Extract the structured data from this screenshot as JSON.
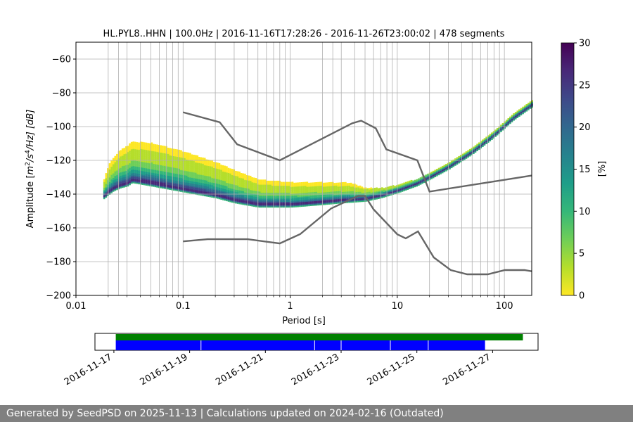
{
  "chart_data": [
    {
      "type": "heatmap",
      "title": "HL.PYL8..HHN | 100.0Hz | 2016-11-16T17:28:26 - 2016-11-26T23:00:02 | 478 segments",
      "xlabel": "Period [s]",
      "ylabel_parts": {
        "pre": "Amplitude [",
        "m": "m",
        "exp1": "2",
        "mid": "/s",
        "exp2": "4",
        "post": "/Hz] [dB]"
      },
      "xscale": "log",
      "xlim": [
        0.01,
        180
      ],
      "ylim": [
        -200,
        -50
      ],
      "xticks": [
        {
          "v": 0.01,
          "label": "0.01"
        },
        {
          "v": 0.1,
          "label": "0.1"
        },
        {
          "v": 1,
          "label": "1"
        },
        {
          "v": 10,
          "label": "10"
        },
        {
          "v": 100,
          "label": "100"
        }
      ],
      "yticks": [
        {
          "v": -60,
          "label": "−60"
        },
        {
          "v": -80,
          "label": "−80"
        },
        {
          "v": -100,
          "label": "−100"
        },
        {
          "v": -120,
          "label": "−120"
        },
        {
          "v": -140,
          "label": "−140"
        },
        {
          "v": -160,
          "label": "−160"
        },
        {
          "v": -180,
          "label": "−180"
        },
        {
          "v": -200,
          "label": "−200"
        }
      ],
      "grid_periods": [
        0.02,
        0.025,
        0.03,
        0.04,
        0.05,
        0.06,
        0.07,
        0.08,
        0.09,
        0.1,
        0.2,
        0.3,
        0.4,
        0.5,
        0.6,
        0.7,
        0.8,
        0.9,
        1.0,
        2.0,
        2.5,
        3.0,
        4.0,
        5.0,
        6.0,
        7.0,
        8.0,
        9.0,
        10.0,
        20.0,
        30.0,
        40.0,
        50.0,
        60.0,
        70.0,
        80.0,
        90.0,
        100.0
      ],
      "grid_db": [
        -60,
        -80,
        -100,
        -120,
        -140,
        -160,
        -180
      ],
      "noise_models": [
        {
          "name": "NHNM",
          "points": [
            [
              0.1,
              -91.5
            ],
            [
              0.22,
              -97.4
            ],
            [
              0.32,
              -110.5
            ],
            [
              0.8,
              -120
            ],
            [
              3.8,
              -98
            ],
            [
              4.6,
              -96.5
            ],
            [
              6.3,
              -101
            ],
            [
              7.9,
              -113.5
            ],
            [
              15.4,
              -120
            ],
            [
              20,
              -138.5
            ],
            [
              180,
              -129
            ]
          ]
        },
        {
          "name": "NLNM",
          "points": [
            [
              0.1,
              -168
            ],
            [
              0.17,
              -166.7
            ],
            [
              0.4,
              -166.7
            ],
            [
              0.8,
              -169.2
            ],
            [
              1.24,
              -163.7
            ],
            [
              2.4,
              -148.6
            ],
            [
              4.3,
              -141.1
            ],
            [
              5.0,
              -141.1
            ],
            [
              6.0,
              -149
            ],
            [
              10.0,
              -163.8
            ],
            [
              12.0,
              -166.2
            ],
            [
              15.6,
              -162.1
            ],
            [
              21.9,
              -177.5
            ],
            [
              31.6,
              -185
            ],
            [
              45.0,
              -187.5
            ],
            [
              70.0,
              -187.5
            ],
            [
              101.0,
              -185
            ],
            [
              154.0,
              -185
            ],
            [
              180.0,
              -185.7
            ]
          ]
        }
      ],
      "psd_mode_curve": [
        [
          0.018,
          -140.5
        ],
        [
          0.022,
          -136
        ],
        [
          0.026,
          -134
        ],
        [
          0.03,
          -133
        ],
        [
          0.033,
          -131
        ],
        [
          0.05,
          -133
        ],
        [
          0.1,
          -136.5
        ],
        [
          0.2,
          -140
        ],
        [
          0.3,
          -143
        ],
        [
          0.5,
          -145.5
        ],
        [
          1,
          -145.5
        ],
        [
          2,
          -144
        ],
        [
          3,
          -143
        ],
        [
          5,
          -142
        ],
        [
          7,
          -140
        ],
        [
          10,
          -137
        ],
        [
          15,
          -133
        ],
        [
          20,
          -129
        ],
        [
          30,
          -123
        ],
        [
          50,
          -114
        ],
        [
          80,
          -104
        ],
        [
          120,
          -94
        ],
        [
          180,
          -86
        ]
      ],
      "psd_spread_curve": [
        [
          0.018,
          10
        ],
        [
          0.02,
          18
        ],
        [
          0.025,
          24
        ],
        [
          0.03,
          26
        ],
        [
          0.05,
          28
        ],
        [
          0.1,
          26
        ],
        [
          0.3,
          20
        ],
        [
          0.5,
          16
        ],
        [
          1,
          14
        ],
        [
          2,
          12
        ],
        [
          3.5,
          10
        ],
        [
          5,
          6
        ],
        [
          7,
          4
        ],
        [
          10,
          3
        ],
        [
          20,
          2
        ],
        [
          180,
          2
        ]
      ],
      "colorbar": {
        "label": "[%]",
        "min": 0,
        "max": 30,
        "ticks": [
          {
            "v": 0,
            "label": "0"
          },
          {
            "v": 5,
            "label": "5"
          },
          {
            "v": 10,
            "label": "10"
          },
          {
            "v": 15,
            "label": "15"
          },
          {
            "v": 20,
            "label": "20"
          },
          {
            "v": 25,
            "label": "25"
          },
          {
            "v": 30,
            "label": "30"
          }
        ],
        "stops": [
          "#fde725",
          "#b5de2b",
          "#6ece58",
          "#35b779",
          "#1f9e89",
          "#26828e",
          "#31688e",
          "#3e4989",
          "#482878",
          "#440154"
        ]
      }
    },
    {
      "type": "timeline",
      "xlim_days": [
        0,
        11.7
      ],
      "xticks": [
        {
          "v": 0.5,
          "label": "2016-11-17"
        },
        {
          "v": 2.5,
          "label": "2016-11-19"
        },
        {
          "v": 4.5,
          "label": "2016-11-21"
        },
        {
          "v": 6.5,
          "label": "2016-11-23"
        },
        {
          "v": 8.5,
          "label": "2016-11-25"
        },
        {
          "v": 10.5,
          "label": "2016-11-27"
        }
      ],
      "availability": {
        "start": 0.55,
        "end": 11.3,
        "color": "#008000"
      },
      "processed": {
        "start": 0.55,
        "end": 10.3,
        "color": "#0000ff",
        "gaps": [
          2.8,
          5.8,
          6.5,
          7.8,
          8.8
        ]
      }
    }
  ],
  "footer": {
    "text": "Generated by SeedPSD on 2025-11-13 | Calculations updated on 2024-02-16 (Outdated)"
  }
}
